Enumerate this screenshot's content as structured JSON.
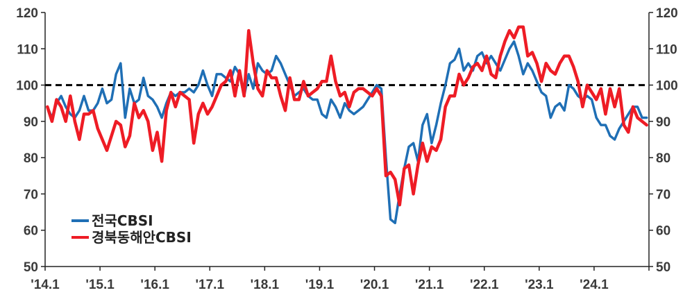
{
  "chart_data": {
    "type": "line",
    "title": "",
    "xlabel": "",
    "ylabel": "",
    "ylim": [
      50,
      120
    ],
    "y_ticks": [
      50,
      60,
      70,
      80,
      90,
      100,
      110,
      120
    ],
    "y2_ticks": [
      50,
      60,
      70,
      80,
      90,
      100,
      110,
      120
    ],
    "x_tick_labels": [
      "'14.1",
      "'15.1",
      "'16.1",
      "'17.1",
      "'18.1",
      "'19.1",
      "'20.1",
      "'21.1",
      "'22.1",
      "'23.1",
      "'24.1"
    ],
    "x_start": "2014-01",
    "x_frequency": "monthly",
    "reference_line": {
      "value": 100,
      "style": "dashed",
      "color": "#000000"
    },
    "legend_position": "bottom-left",
    "grid": false,
    "series": [
      {
        "name": "전국CBSI",
        "color": "#1f6fb5",
        "values": [
          94,
          91,
          95,
          97,
          94,
          92,
          91,
          93,
          97,
          93,
          93,
          95,
          99,
          95,
          96,
          103,
          106,
          91,
          99,
          95,
          96,
          102,
          97,
          96,
          94,
          91,
          95,
          98,
          97,
          98,
          98,
          99,
          98,
          100,
          104,
          100,
          97,
          103,
          103,
          102,
          101,
          105,
          103,
          97,
          103,
          99,
          106,
          104,
          103,
          104,
          108,
          106,
          103,
          100,
          97,
          98,
          99,
          97,
          96,
          96,
          92,
          91,
          96,
          94,
          91,
          95,
          93,
          92,
          93,
          94,
          96,
          98,
          100,
          99,
          80,
          63,
          62,
          70,
          77,
          83,
          84,
          79,
          89,
          92,
          84,
          89,
          95,
          100,
          106,
          107,
          110,
          104,
          106,
          104,
          108,
          109,
          106,
          108,
          106,
          104,
          107,
          110,
          112,
          108,
          103,
          106,
          104,
          101,
          98,
          97,
          91,
          94,
          95,
          93,
          100,
          99,
          97,
          96,
          97,
          96,
          91,
          89,
          89,
          86,
          85,
          88,
          90,
          92,
          94,
          94,
          91,
          91
        ]
      },
      {
        "name": "경북동해안CBSI",
        "color": "#ee1c25",
        "values": [
          94,
          90,
          96,
          94,
          90,
          97,
          90,
          85,
          92,
          92,
          93,
          88,
          85,
          82,
          86,
          90,
          89,
          83,
          86,
          95,
          91,
          93,
          90,
          82,
          87,
          79,
          93,
          98,
          94,
          98,
          97,
          96,
          84,
          92,
          95,
          92,
          94,
          97,
          100,
          101,
          104,
          97,
          104,
          97,
          115,
          106,
          99,
          97,
          104,
          102,
          102,
          97,
          93,
          102,
          96,
          96,
          101,
          97,
          98,
          99,
          101,
          101,
          108,
          101,
          97,
          98,
          94,
          98,
          99,
          99,
          98,
          97,
          99,
          97,
          75,
          76,
          74,
          67,
          77,
          78,
          70,
          78,
          84,
          79,
          83,
          82,
          85,
          94,
          97,
          97,
          103,
          100,
          102,
          105,
          106,
          104,
          108,
          103,
          102,
          108,
          112,
          115,
          113,
          116,
          116,
          108,
          109,
          106,
          101,
          106,
          104,
          103,
          106,
          108,
          108,
          105,
          101,
          94,
          100,
          98,
          96,
          99,
          92,
          99,
          94,
          99,
          89,
          87,
          94,
          91,
          90,
          89
        ]
      }
    ]
  }
}
